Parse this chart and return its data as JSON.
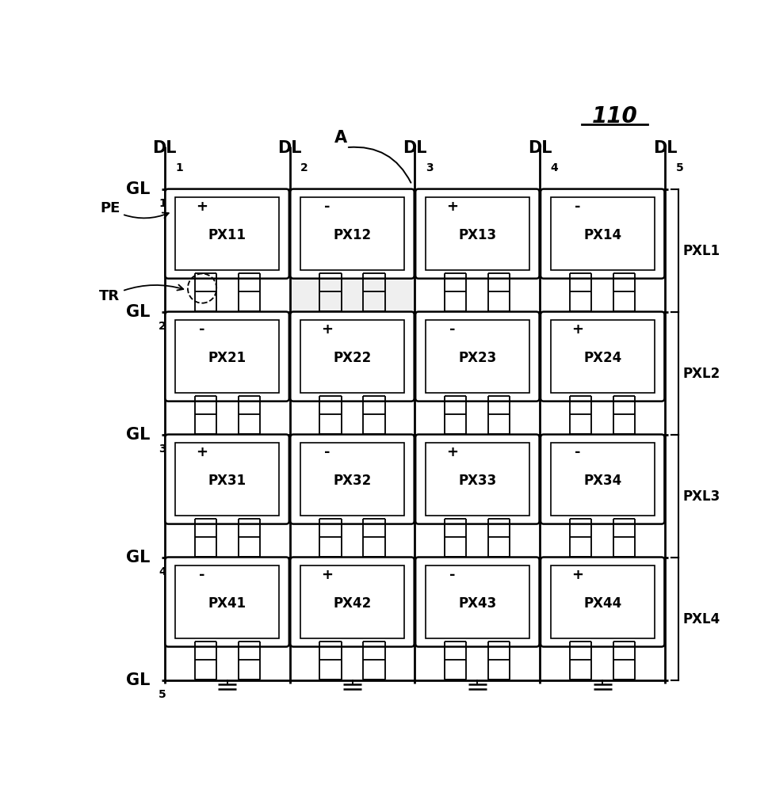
{
  "bg_color": "#ffffff",
  "fig_width": 9.7,
  "fig_height": 10.0,
  "dpi": 100,
  "pixel_labels": [
    [
      "PX11",
      "PX12",
      "PX13",
      "PX14"
    ],
    [
      "PX21",
      "PX22",
      "PX23",
      "PX24"
    ],
    [
      "PX31",
      "PX32",
      "PX33",
      "PX34"
    ],
    [
      "PX41",
      "PX42",
      "PX43",
      "PX44"
    ]
  ],
  "pixel_signs": [
    [
      "+",
      "-",
      "+",
      "-"
    ],
    [
      "-",
      "+",
      "-",
      "+"
    ],
    [
      "+",
      "-",
      "+",
      "-"
    ],
    [
      "-",
      "+",
      "-",
      "+"
    ]
  ],
  "n_cols": 4,
  "n_rows": 4,
  "GL": 0.115,
  "GR": 0.955,
  "GT": 0.845,
  "GB": 0.04
}
